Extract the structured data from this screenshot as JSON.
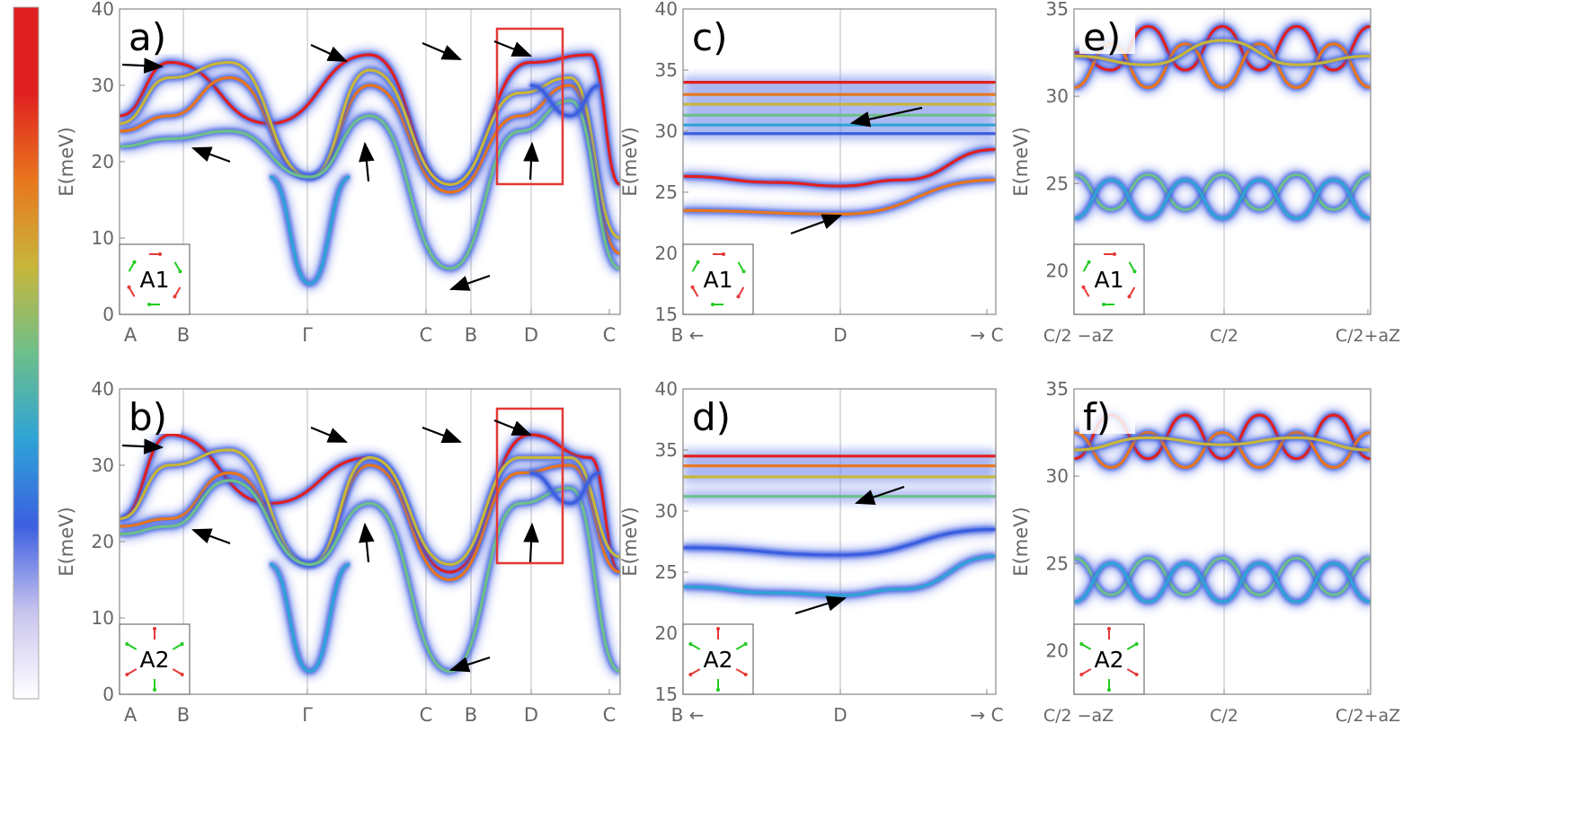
{
  "colors": {
    "bg": "#ffffff",
    "frame": "#888888",
    "tick_text": "#666666",
    "arrow": "#000000",
    "box": "#e53935",
    "inset_red": "#e53935",
    "inset_green": "#22cc22",
    "cmap": [
      "#ffffff",
      "#c9c4ef",
      "#3c5fe0",
      "#2ea3d6",
      "#6dbf8a",
      "#c8b63a",
      "#e8761d",
      "#e02020",
      "#e02020"
    ]
  },
  "colorbar": {
    "name": "intensity-colorbar"
  },
  "chart_data": [
    {
      "type": "heatmap",
      "panel_label": "a)",
      "ylabel": "E(meV)",
      "ylim": [
        0,
        40
      ],
      "yticks": [
        "0",
        "10",
        "20",
        "30",
        "40"
      ],
      "xticks": [
        "A",
        "B",
        "Γ",
        "C",
        "B",
        "D",
        "C"
      ],
      "inset_label": "A1",
      "highlight_box": true,
      "bands": [
        {
          "name": "top",
          "x": [
            0,
            0.1,
            0.3,
            0.5,
            0.66,
            0.82,
            0.94,
            1.0
          ],
          "y": [
            26,
            33,
            25,
            34,
            17,
            33,
            34,
            17
          ]
        },
        {
          "name": "mid-a",
          "x": [
            0,
            0.1,
            0.22,
            0.38,
            0.5,
            0.66,
            0.8,
            0.9,
            1.0
          ],
          "y": [
            24,
            26,
            31,
            18,
            30,
            16,
            26,
            30,
            8
          ]
        },
        {
          "name": "mid-b",
          "x": [
            0,
            0.1,
            0.22,
            0.38,
            0.5,
            0.66,
            0.8,
            0.9,
            1.0
          ],
          "y": [
            25,
            31,
            33,
            18,
            32,
            17,
            29,
            31,
            10
          ]
        },
        {
          "name": "low-a",
          "x": [
            0,
            0.1,
            0.22,
            0.38,
            0.5,
            0.66,
            0.8,
            0.9,
            1.0
          ],
          "y": [
            22,
            23,
            24,
            18,
            26,
            6,
            24,
            28,
            6
          ]
        },
        {
          "name": "gamma-dip",
          "x": [
            0.3,
            0.38,
            0.46
          ],
          "y": [
            18,
            4,
            18
          ]
        },
        {
          "name": "dip-d",
          "x": [
            0.82,
            0.9,
            0.96
          ],
          "y": [
            30,
            26,
            30
          ]
        }
      ]
    },
    {
      "type": "heatmap",
      "panel_label": "b)",
      "ylabel": "E(meV)",
      "ylim": [
        0,
        40
      ],
      "yticks": [
        "0",
        "10",
        "20",
        "30",
        "40"
      ],
      "xticks": [
        "A",
        "B",
        "Γ",
        "C",
        "B",
        "D",
        "C"
      ],
      "inset_label": "A2",
      "highlight_box": true,
      "bands": [
        {
          "name": "top",
          "x": [
            0,
            0.1,
            0.3,
            0.5,
            0.66,
            0.82,
            0.94,
            1.0
          ],
          "y": [
            23,
            34,
            25,
            31,
            16,
            34,
            31,
            16
          ]
        },
        {
          "name": "mid-a",
          "x": [
            0,
            0.1,
            0.22,
            0.38,
            0.5,
            0.66,
            0.8,
            0.9,
            1.0
          ],
          "y": [
            22,
            23,
            29,
            17,
            30,
            15,
            29,
            30,
            16
          ]
        },
        {
          "name": "mid-b",
          "x": [
            0,
            0.1,
            0.22,
            0.38,
            0.5,
            0.66,
            0.8,
            0.9,
            1.0
          ],
          "y": [
            23,
            30,
            32,
            17,
            31,
            17,
            31,
            31,
            18
          ]
        },
        {
          "name": "low-a",
          "x": [
            0,
            0.1,
            0.22,
            0.38,
            0.5,
            0.66,
            0.8,
            0.9,
            1.0
          ],
          "y": [
            21,
            22,
            28,
            17,
            25,
            3,
            25,
            27,
            3
          ]
        },
        {
          "name": "gamma-dip",
          "x": [
            0.3,
            0.38,
            0.46
          ],
          "y": [
            17,
            3,
            17
          ]
        },
        {
          "name": "dip-d",
          "x": [
            0.82,
            0.9,
            0.96
          ],
          "y": [
            29,
            25,
            29
          ]
        }
      ]
    },
    {
      "type": "heatmap",
      "panel_label": "c)",
      "ylabel": "E(meV)",
      "ylim": [
        15,
        40
      ],
      "yticks": [
        "15",
        "20",
        "25",
        "30",
        "35",
        "40"
      ],
      "xticks": [
        "B ←",
        "D",
        "→ C"
      ],
      "inset_label": "A1",
      "bands": [
        {
          "name": "flat-1",
          "x": [
            0,
            1
          ],
          "y": [
            34,
            34
          ]
        },
        {
          "name": "flat-2",
          "x": [
            0,
            1
          ],
          "y": [
            33,
            33
          ]
        },
        {
          "name": "flat-3",
          "x": [
            0,
            1
          ],
          "y": [
            32.2,
            32.2
          ]
        },
        {
          "name": "flat-4",
          "x": [
            0,
            1
          ],
          "y": [
            31.3,
            31.3
          ]
        },
        {
          "name": "flat-5",
          "x": [
            0,
            1
          ],
          "y": [
            30.5,
            30.5
          ]
        },
        {
          "name": "flat-6",
          "x": [
            0,
            1
          ],
          "y": [
            29.8,
            29.8
          ]
        },
        {
          "name": "lower",
          "x": [
            0,
            0.3,
            0.5,
            0.7,
            1.0
          ],
          "y": [
            26.3,
            25.8,
            25.5,
            26,
            28.5
          ]
        },
        {
          "name": "faint",
          "x": [
            0,
            0.5,
            1.0
          ],
          "y": [
            23.5,
            23.2,
            26
          ]
        }
      ]
    },
    {
      "type": "heatmap",
      "panel_label": "d)",
      "ylabel": "E(meV)",
      "ylim": [
        15,
        40
      ],
      "yticks": [
        "15",
        "20",
        "25",
        "30",
        "35",
        "40"
      ],
      "xticks": [
        "B ←",
        "D",
        "→ C"
      ],
      "inset_label": "A2",
      "bands": [
        {
          "name": "flat-1",
          "x": [
            0,
            1
          ],
          "y": [
            34.5,
            34.5
          ]
        },
        {
          "name": "flat-2",
          "x": [
            0,
            1
          ],
          "y": [
            33.7,
            33.7
          ]
        },
        {
          "name": "flat-3",
          "x": [
            0,
            1
          ],
          "y": [
            32.8,
            32.8
          ]
        },
        {
          "name": "flat-4",
          "x": [
            0,
            1
          ],
          "y": [
            31.2,
            31.2
          ]
        },
        {
          "name": "lower",
          "x": [
            0,
            0.3,
            0.5,
            0.7,
            1.0
          ],
          "y": [
            23.8,
            23.3,
            23.1,
            23.6,
            26.3
          ]
        },
        {
          "name": "faint",
          "x": [
            0,
            0.5,
            1.0
          ],
          "y": [
            27,
            26.4,
            28.5
          ]
        }
      ]
    },
    {
      "type": "heatmap",
      "panel_label": "e)",
      "ylabel": "E(meV)",
      "ylim": [
        17.5,
        35
      ],
      "yticks": [
        "20",
        "25",
        "30",
        "35"
      ],
      "xticks": [
        "C/2 −aZ",
        "C/2",
        "C/2+aZ"
      ],
      "inset_label": "A1",
      "bands": [
        {
          "name": "upper-a",
          "x": [
            0,
            0.125,
            0.25,
            0.375,
            0.5,
            0.625,
            0.75,
            0.875,
            1.0
          ],
          "y": [
            32.5,
            31.5,
            34,
            31.5,
            34,
            31.5,
            34,
            31.5,
            34
          ]
        },
        {
          "name": "upper-b",
          "x": [
            0,
            0.125,
            0.25,
            0.375,
            0.5,
            0.625,
            0.75,
            0.875,
            1.0
          ],
          "y": [
            30.5,
            33,
            30.5,
            33,
            30.5,
            33,
            30.5,
            33,
            30.5
          ]
        },
        {
          "name": "upper-c",
          "x": [
            0,
            0.25,
            0.5,
            0.75,
            1.0
          ],
          "y": [
            32.3,
            31.8,
            33.2,
            31.8,
            32.3
          ]
        },
        {
          "name": "lower-a",
          "x": [
            0,
            0.125,
            0.25,
            0.375,
            0.5,
            0.625,
            0.75,
            0.875,
            1.0
          ],
          "y": [
            25.5,
            23.5,
            25.5,
            23.5,
            25.5,
            23.5,
            25.5,
            23.5,
            25.5
          ]
        },
        {
          "name": "lower-b",
          "x": [
            0,
            0.125,
            0.25,
            0.375,
            0.5,
            0.625,
            0.75,
            0.875,
            1.0
          ],
          "y": [
            23,
            25.2,
            23,
            25.2,
            23,
            25.2,
            23,
            25.2,
            23
          ]
        }
      ]
    },
    {
      "type": "heatmap",
      "panel_label": "f)",
      "ylabel": "E(meV)",
      "ylim": [
        17.5,
        35
      ],
      "yticks": [
        "20",
        "25",
        "30",
        "35"
      ],
      "xticks": [
        "C/2 −aZ",
        "C/2",
        "C/2+aZ"
      ],
      "inset_label": "A2",
      "bands": [
        {
          "name": "upper-a",
          "x": [
            0,
            0.125,
            0.25,
            0.375,
            0.5,
            0.625,
            0.75,
            0.875,
            1.0
          ],
          "y": [
            31,
            33.5,
            31,
            33.5,
            31,
            33.5,
            31,
            33.5,
            31
          ]
        },
        {
          "name": "upper-b",
          "x": [
            0,
            0.125,
            0.25,
            0.375,
            0.5,
            0.625,
            0.75,
            0.875,
            1.0
          ],
          "y": [
            32.5,
            30.5,
            32.5,
            30.5,
            32.5,
            30.5,
            32.5,
            30.5,
            32.5
          ]
        },
        {
          "name": "upper-c",
          "x": [
            0,
            0.25,
            0.5,
            0.75,
            1.0
          ],
          "y": [
            31.5,
            32.2,
            31.8,
            32.2,
            31.5
          ]
        },
        {
          "name": "lower-a",
          "x": [
            0,
            0.125,
            0.25,
            0.375,
            0.5,
            0.625,
            0.75,
            0.875,
            1.0
          ],
          "y": [
            25.3,
            23.2,
            25.3,
            23.2,
            25.3,
            23.2,
            25.3,
            23.2,
            25.3
          ]
        },
        {
          "name": "lower-b",
          "x": [
            0,
            0.125,
            0.25,
            0.375,
            0.5,
            0.625,
            0.75,
            0.875,
            1.0
          ],
          "y": [
            22.8,
            25,
            22.8,
            25,
            22.8,
            25,
            22.8,
            25,
            22.8
          ]
        }
      ]
    }
  ]
}
